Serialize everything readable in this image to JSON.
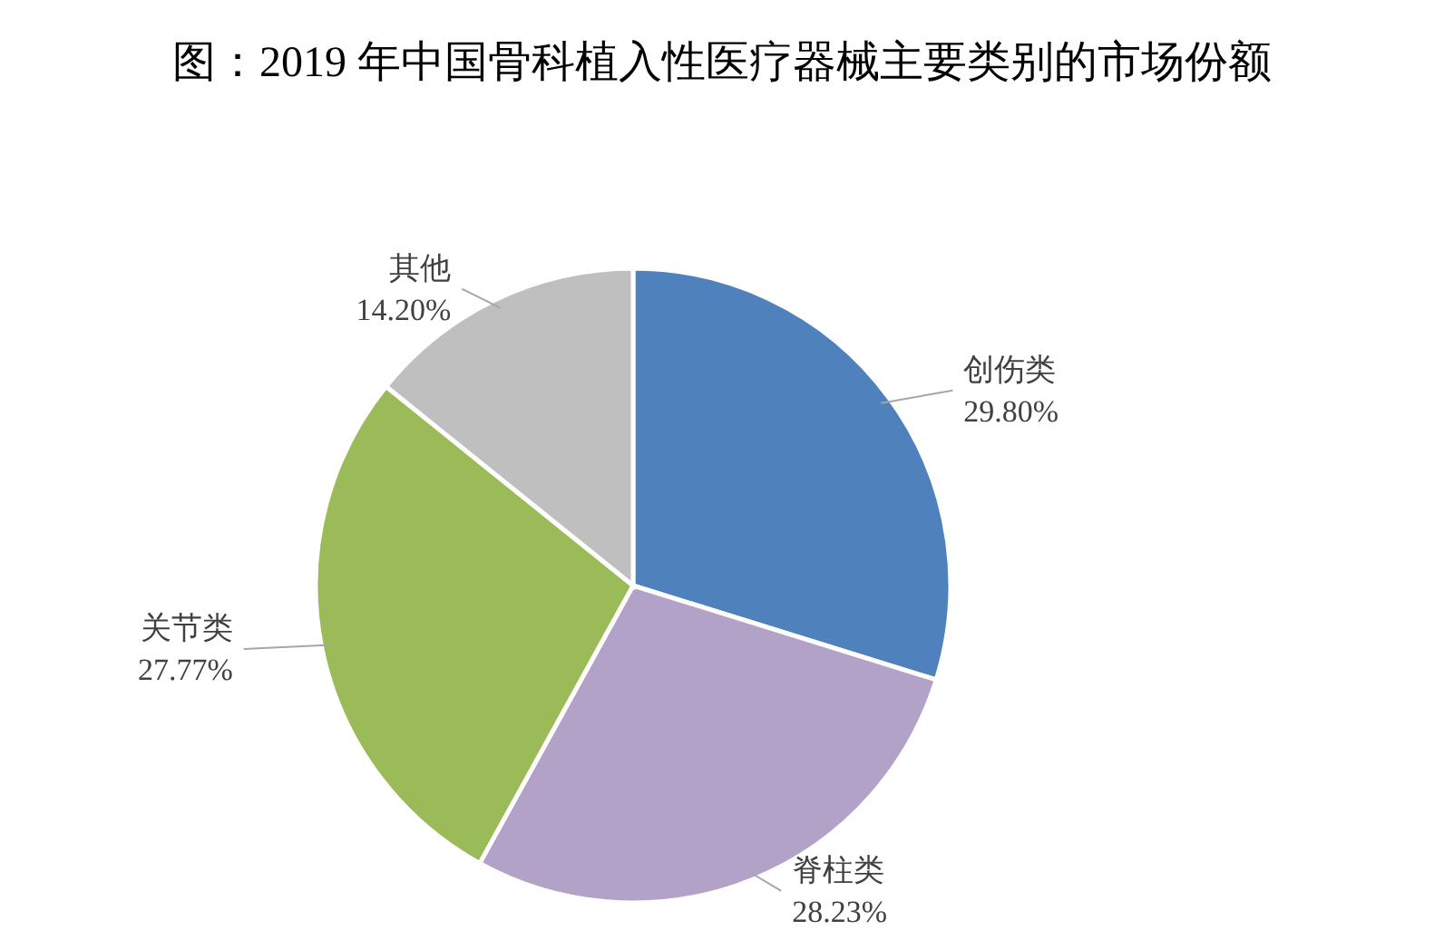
{
  "chart_data": {
    "type": "pie",
    "title": "图：2019 年中国骨科植入性医疗器械主要类别的市场份额",
    "categories": [
      "创伤类",
      "脊柱类",
      "关节类",
      "其他"
    ],
    "values": [
      29.8,
      28.23,
      27.77,
      14.2
    ],
    "colors": [
      "#4f81bd",
      "#b3a2c7",
      "#9bbb59",
      "#bfbfbf"
    ],
    "value_labels": [
      "29.80%",
      "28.23%",
      "27.77%",
      "14.20%"
    ]
  }
}
